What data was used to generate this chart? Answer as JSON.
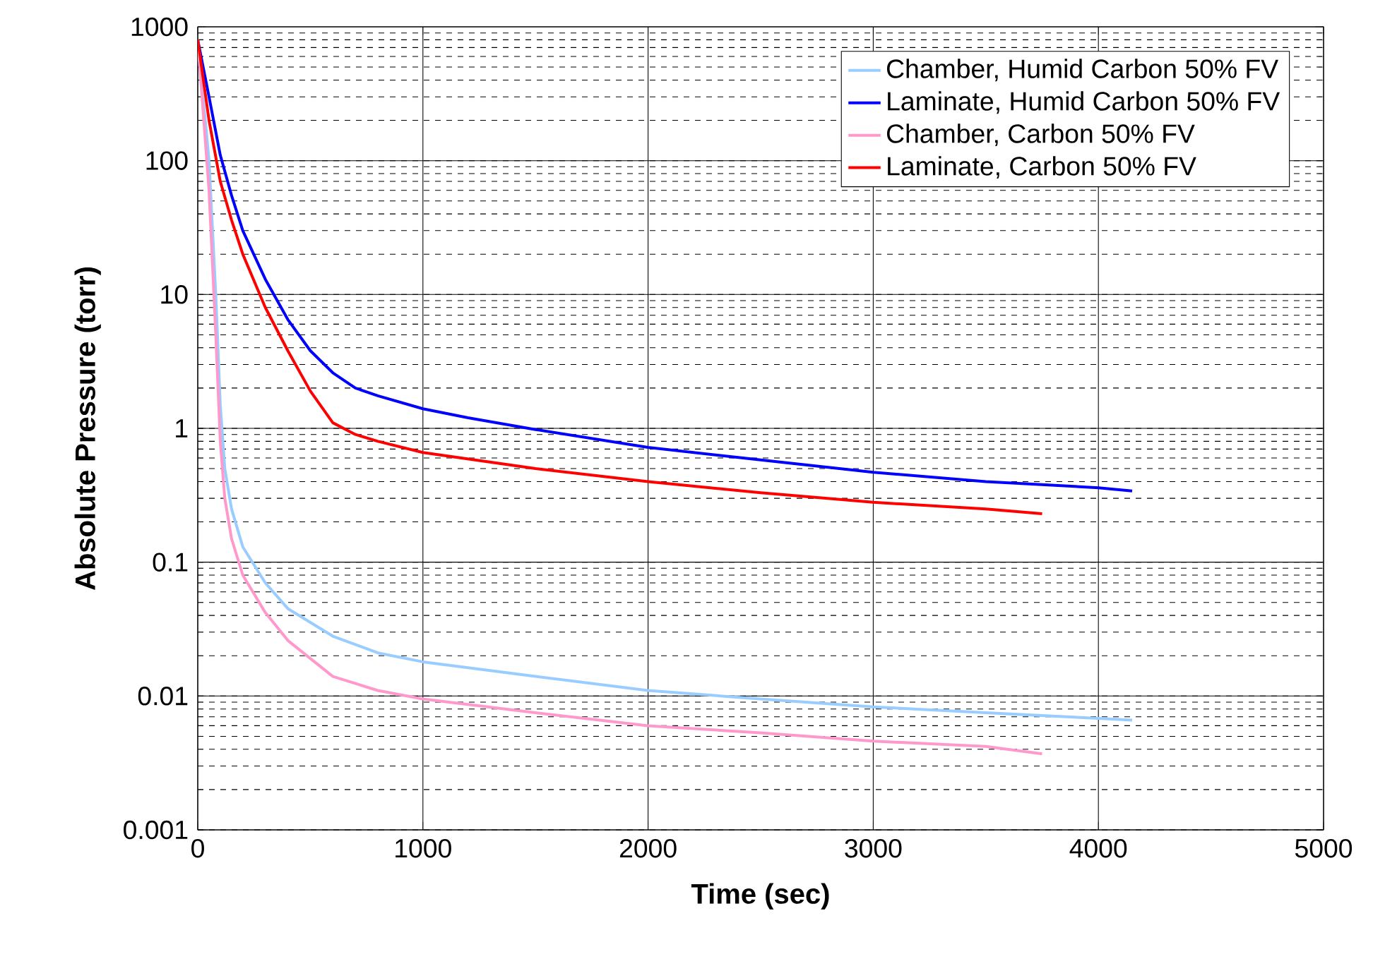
{
  "chart_data": {
    "type": "line",
    "xlabel": "Time (sec)",
    "ylabel": "Absolute Pressure (torr)",
    "log": "y",
    "grid": true,
    "legend": "top right",
    "marker": "none",
    "line_style": "solid",
    "xlim": [
      0,
      5000
    ],
    "xticks": [
      0,
      1000,
      2000,
      3000,
      4000,
      5000
    ],
    "ylim": [
      0.001,
      1000
    ],
    "yticks": [
      0.001,
      0.01,
      0.1,
      1,
      10,
      100,
      1000
    ],
    "series": [
      {
        "name": "Chamber, Humid Carbon 50% FV",
        "color": "#99ccff",
        "x": [
          0,
          50,
          80,
          100,
          120,
          150,
          200,
          300,
          400,
          600,
          800,
          1000,
          1500,
          2000,
          2500,
          3000,
          3500,
          4000,
          4150
        ],
        "values": [
          800,
          100,
          10,
          1.5,
          0.5,
          0.25,
          0.13,
          0.07,
          0.045,
          0.028,
          0.021,
          0.018,
          0.014,
          0.011,
          0.0095,
          0.0083,
          0.0075,
          0.0068,
          0.0066
        ]
      },
      {
        "name": "Laminate, Humid Carbon 50% FV",
        "color": "#0000ff",
        "x": [
          0,
          50,
          100,
          150,
          200,
          300,
          400,
          500,
          600,
          700,
          800,
          1000,
          1200,
          1500,
          2000,
          2500,
          3000,
          3500,
          4000,
          4150
        ],
        "values": [
          800,
          300,
          110,
          55,
          30,
          13,
          6.5,
          3.8,
          2.6,
          2.0,
          1.75,
          1.4,
          1.2,
          0.98,
          0.72,
          0.58,
          0.47,
          0.4,
          0.36,
          0.34
        ]
      },
      {
        "name": "Chamber, Carbon 50% FV",
        "color": "#ff99cc",
        "x": [
          0,
          50,
          80,
          100,
          120,
          150,
          200,
          300,
          400,
          600,
          800,
          1000,
          1500,
          2000,
          2500,
          3000,
          3500,
          3750
        ],
        "values": [
          800,
          60,
          5,
          0.8,
          0.3,
          0.15,
          0.08,
          0.042,
          0.026,
          0.014,
          0.011,
          0.0095,
          0.0075,
          0.006,
          0.0053,
          0.0046,
          0.0042,
          0.0037
        ]
      },
      {
        "name": "Laminate, Carbon 50% FV",
        "color": "#ff0000",
        "x": [
          0,
          50,
          100,
          150,
          200,
          300,
          400,
          500,
          600,
          700,
          800,
          1000,
          1500,
          2000,
          2500,
          3000,
          3500,
          3750
        ],
        "values": [
          800,
          200,
          70,
          36,
          20,
          8,
          3.8,
          1.9,
          1.1,
          0.9,
          0.8,
          0.66,
          0.5,
          0.4,
          0.33,
          0.28,
          0.25,
          0.23
        ]
      }
    ]
  }
}
